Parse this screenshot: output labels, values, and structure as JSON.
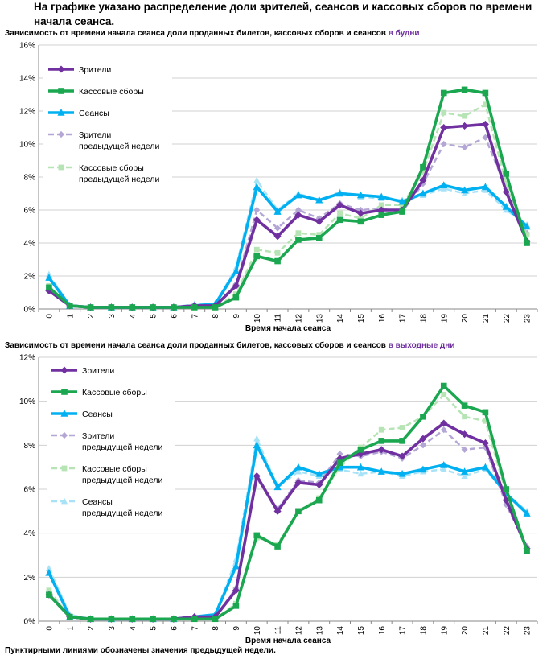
{
  "page": {
    "title": "На графике указано распределение доли зрителей, сеансов и кассовых сборов по времени начала сеанса.",
    "footnote": "Пунктирными линиями обозначены значения предыдущей недели."
  },
  "colors": {
    "viewers": "#7030a0",
    "box_office": "#1aa750",
    "sessions": "#00b0f0",
    "viewers_prev": "#b4a7d6",
    "box_office_prev": "#b7e4b4",
    "sessions_prev": "#a8e2f7",
    "grid": "#d0d0d0"
  },
  "chart_data": [
    {
      "type": "line",
      "title_prefix": "Зависимость от времени начала сеанса доли проданных билетов, кассовых сборов и сеансов",
      "title_highlight": "в будни",
      "xlabel": "Время начала сеанса",
      "ylabel": "",
      "ylim": [
        0,
        16
      ],
      "yticks": [
        "0%",
        "2%",
        "4%",
        "6%",
        "8%",
        "10%",
        "12%",
        "14%",
        "16%"
      ],
      "categories": [
        "0",
        "1",
        "2",
        "3",
        "4",
        "5",
        "6",
        "7",
        "8",
        "9",
        "10",
        "11",
        "12",
        "13",
        "14",
        "15",
        "16",
        "17",
        "18",
        "19",
        "20",
        "21",
        "22",
        "23"
      ],
      "legend_position": "top-left",
      "series": [
        {
          "key": "sessions_prev",
          "name": "Сеансы предыдущей недели",
          "in_legend": false,
          "style": "dashed",
          "marker": "triangle",
          "values": [
            2.1,
            0.2,
            0.1,
            0.1,
            0.1,
            0.1,
            0.1,
            0.3,
            0.3,
            2.5,
            7.8,
            6.0,
            7.0,
            6.6,
            7.1,
            6.8,
            6.7,
            6.6,
            6.9,
            7.3,
            7.0,
            7.2,
            6.0,
            5.1
          ]
        },
        {
          "key": "viewers_prev",
          "name": "Зрители предыдущей недели",
          "in_legend": true,
          "legend_lines": [
            "Зрители",
            "предыдущей недели"
          ],
          "style": "dashed",
          "marker": "diamond",
          "values": [
            1.2,
            0.2,
            0.1,
            0.1,
            0.1,
            0.1,
            0.1,
            0.2,
            0.2,
            1.5,
            6.0,
            4.9,
            6.0,
            5.5,
            6.4,
            6.0,
            6.1,
            5.9,
            7.6,
            10.0,
            9.8,
            10.4,
            7.3,
            4.6
          ]
        },
        {
          "key": "box_office_prev",
          "name": "Кассовые сборы предыдущей недели",
          "in_legend": true,
          "legend_lines": [
            "Кассовые сборы",
            "предыдущей недели"
          ],
          "style": "dashed",
          "marker": "square",
          "values": [
            1.4,
            0.2,
            0.1,
            0.1,
            0.1,
            0.1,
            0.1,
            0.1,
            0.1,
            0.9,
            3.6,
            3.4,
            4.6,
            4.5,
            5.8,
            5.5,
            6.3,
            6.3,
            8.3,
            11.9,
            11.7,
            12.4,
            7.6,
            4.5
          ]
        },
        {
          "key": "sessions",
          "name": "Сеансы",
          "in_legend": true,
          "legend_lines": [
            "Сеансы"
          ],
          "style": "solid",
          "marker": "triangle",
          "values": [
            1.9,
            0.2,
            0.1,
            0.1,
            0.1,
            0.1,
            0.1,
            0.2,
            0.3,
            2.3,
            7.4,
            5.9,
            6.9,
            6.6,
            7.0,
            6.9,
            6.8,
            6.5,
            7.0,
            7.5,
            7.2,
            7.4,
            6.2,
            5.0
          ]
        },
        {
          "key": "viewers",
          "name": "Зрители",
          "in_legend": true,
          "legend_lines": [
            "Зрители"
          ],
          "style": "solid",
          "marker": "diamond",
          "values": [
            1.1,
            0.2,
            0.1,
            0.1,
            0.1,
            0.1,
            0.1,
            0.2,
            0.2,
            1.4,
            5.4,
            4.4,
            5.7,
            5.3,
            6.3,
            5.8,
            6.0,
            6.0,
            7.8,
            11.0,
            11.1,
            11.2,
            7.1,
            4.1
          ]
        },
        {
          "key": "box_office",
          "name": "Кассовые сборы",
          "in_legend": true,
          "legend_lines": [
            "Кассовые сборы"
          ],
          "style": "solid",
          "marker": "square",
          "values": [
            1.3,
            0.2,
            0.1,
            0.1,
            0.1,
            0.1,
            0.1,
            0.1,
            0.1,
            0.7,
            3.2,
            2.9,
            4.2,
            4.3,
            5.4,
            5.3,
            5.7,
            5.9,
            8.6,
            13.1,
            13.3,
            13.1,
            8.2,
            4.0
          ]
        }
      ]
    },
    {
      "type": "line",
      "title_prefix": "Зависимость от времени начала сеанса доли проданных билетов, кассовых сборов и сеансов",
      "title_highlight": "в выходные дни",
      "xlabel": "Время начала сеанса",
      "ylabel": "",
      "ylim": [
        0,
        12
      ],
      "yticks": [
        "0%",
        "2%",
        "4%",
        "6%",
        "8%",
        "10%",
        "12%"
      ],
      "categories": [
        "0",
        "1",
        "2",
        "3",
        "4",
        "5",
        "6",
        "7",
        "8",
        "9",
        "10",
        "11",
        "12",
        "13",
        "14",
        "15",
        "16",
        "17",
        "18",
        "19",
        "20",
        "21",
        "22",
        "23"
      ],
      "legend_position": "top-left",
      "series": [
        {
          "key": "sessions_prev",
          "name": "Сеансы предыдущей недели",
          "in_legend": true,
          "legend_lines": [
            "Сеансы",
            "предыдущей недели"
          ],
          "style": "dashed",
          "marker": "triangle",
          "values": [
            2.4,
            0.3,
            0.1,
            0.1,
            0.1,
            0.1,
            0.1,
            0.2,
            0.3,
            2.8,
            8.3,
            6.1,
            6.8,
            6.6,
            6.9,
            6.7,
            6.8,
            6.6,
            6.8,
            6.9,
            6.6,
            6.9,
            5.8,
            5.0
          ]
        },
        {
          "key": "viewers_prev",
          "name": "Зрители предыдущей недели",
          "in_legend": true,
          "legend_lines": [
            "Зрители",
            "предыдущей недели"
          ],
          "style": "dashed",
          "marker": "diamond",
          "values": [
            1.3,
            0.2,
            0.1,
            0.1,
            0.1,
            0.1,
            0.1,
            0.2,
            0.2,
            1.5,
            6.5,
            5.1,
            6.4,
            6.3,
            7.6,
            7.5,
            7.7,
            7.4,
            8.0,
            8.7,
            7.8,
            7.9,
            5.3,
            3.4
          ]
        },
        {
          "key": "box_office_prev",
          "name": "Кассовые сборы предыдущей недели",
          "in_legend": true,
          "legend_lines": [
            "Кассовые сборы",
            "предыдущей недели"
          ],
          "style": "dashed",
          "marker": "square",
          "values": [
            1.4,
            0.2,
            0.1,
            0.1,
            0.1,
            0.1,
            0.1,
            0.1,
            0.1,
            0.8,
            3.8,
            3.5,
            5.0,
            5.6,
            7.0,
            7.9,
            8.7,
            8.8,
            9.3,
            10.3,
            9.3,
            9.1,
            5.8,
            3.3
          ]
        },
        {
          "key": "sessions",
          "name": "Сеансы",
          "in_legend": true,
          "legend_lines": [
            "Сеансы"
          ],
          "style": "solid",
          "marker": "triangle",
          "values": [
            2.2,
            0.2,
            0.1,
            0.1,
            0.1,
            0.1,
            0.1,
            0.2,
            0.3,
            2.5,
            8.0,
            6.1,
            7.0,
            6.7,
            7.0,
            7.0,
            6.8,
            6.7,
            6.9,
            7.1,
            6.8,
            7.0,
            5.8,
            4.9
          ]
        },
        {
          "key": "viewers",
          "name": "Зрители",
          "in_legend": true,
          "legend_lines": [
            "Зрители"
          ],
          "style": "solid",
          "marker": "diamond",
          "values": [
            1.2,
            0.2,
            0.1,
            0.1,
            0.1,
            0.1,
            0.1,
            0.2,
            0.2,
            1.4,
            6.6,
            5.0,
            6.3,
            6.2,
            7.4,
            7.6,
            7.8,
            7.5,
            8.3,
            9.0,
            8.5,
            8.1,
            5.5,
            3.3
          ]
        },
        {
          "key": "box_office",
          "name": "Кассовые сборы",
          "in_legend": true,
          "legend_lines": [
            "Кассовые сборы"
          ],
          "style": "solid",
          "marker": "square",
          "values": [
            1.2,
            0.2,
            0.1,
            0.1,
            0.1,
            0.1,
            0.1,
            0.1,
            0.1,
            0.7,
            3.9,
            3.4,
            5.0,
            5.5,
            7.2,
            7.8,
            8.2,
            8.2,
            9.3,
            10.7,
            9.8,
            9.5,
            6.0,
            3.2
          ]
        }
      ]
    }
  ]
}
